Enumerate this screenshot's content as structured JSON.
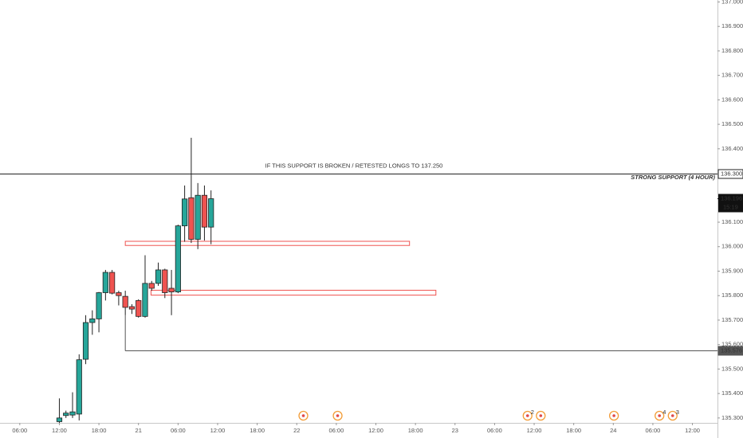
{
  "chart_data": {
    "type": "candlestick",
    "up_color": "#26a69a",
    "down_color": "#ef5350",
    "xlim": [
      3,
      111.8
    ],
    "ylim": [
      135.28,
      137.008
    ],
    "x": [
      12,
      13,
      14,
      15,
      16,
      17,
      18,
      19,
      20,
      21,
      22,
      23,
      24,
      25,
      26,
      27,
      28,
      29,
      30,
      31,
      32,
      33,
      34,
      35
    ],
    "open": [
      135.285,
      135.31,
      135.312,
      135.316,
      135.54,
      135.69,
      135.705,
      135.812,
      135.895,
      135.812,
      135.797,
      135.755,
      135.78,
      135.715,
      135.85,
      135.85,
      135.905,
      135.83,
      135.815,
      136.085,
      136.2,
      136.03,
      136.21,
      136.08
    ],
    "high": [
      135.38,
      135.33,
      135.405,
      135.56,
      135.72,
      135.74,
      135.815,
      135.905,
      135.905,
      135.82,
      135.82,
      135.765,
      135.785,
      135.965,
      135.86,
      135.935,
      135.91,
      135.905,
      136.09,
      136.25,
      136.445,
      136.26,
      136.25,
      136.23
    ],
    "low": [
      135.28,
      135.3,
      135.3,
      135.29,
      135.52,
      135.64,
      135.65,
      135.78,
      135.805,
      135.76,
      135.72,
      135.725,
      135.71,
      135.71,
      135.82,
      135.84,
      135.79,
      135.72,
      135.81,
      136.02,
      136.015,
      135.99,
      136.025,
      136.01
    ],
    "close": [
      135.3,
      135.32,
      135.325,
      135.538,
      135.69,
      135.705,
      135.812,
      135.895,
      135.81,
      135.8,
      135.752,
      135.745,
      135.715,
      135.85,
      135.83,
      135.905,
      135.812,
      135.815,
      136.085,
      136.195,
      136.03,
      136.21,
      136.08,
      136.196
    ],
    "xticks": [
      {
        "value": 6,
        "label": "06:00"
      },
      {
        "value": 12,
        "label": "12:00"
      },
      {
        "value": 18,
        "label": "18:00"
      },
      {
        "value": 24,
        "label": "21"
      },
      {
        "value": 30,
        "label": "06:00"
      },
      {
        "value": 36,
        "label": "12:00"
      },
      {
        "value": 42,
        "label": "18:00"
      },
      {
        "value": 48,
        "label": "22"
      },
      {
        "value": 54,
        "label": "06:00"
      },
      {
        "value": 60,
        "label": "12:00"
      },
      {
        "value": 66,
        "label": "18:00"
      },
      {
        "value": 72,
        "label": "23"
      },
      {
        "value": 78,
        "label": "06:00"
      },
      {
        "value": 84,
        "label": "12:00"
      },
      {
        "value": 90,
        "label": "18:00"
      },
      {
        "value": 96,
        "label": "24"
      },
      {
        "value": 102,
        "label": "06:00"
      },
      {
        "value": 108,
        "label": "12:00"
      }
    ],
    "yticks": [
      {
        "value": 137.0,
        "label": "137.000"
      },
      {
        "value": 136.9,
        "label": "136.900"
      },
      {
        "value": 136.8,
        "label": "136.800"
      },
      {
        "value": 136.7,
        "label": "136.700"
      },
      {
        "value": 136.6,
        "label": "136.600"
      },
      {
        "value": 136.5,
        "label": "136.500"
      },
      {
        "value": 136.4,
        "label": "136.400"
      },
      {
        "value": 136.1,
        "label": "136.100"
      },
      {
        "value": 136.0,
        "label": "136.000"
      },
      {
        "value": 135.9,
        "label": "135.900"
      },
      {
        "value": 135.8,
        "label": "135.800"
      },
      {
        "value": 135.7,
        "label": "135.700"
      },
      {
        "value": 135.6,
        "label": "135.600"
      },
      {
        "value": 135.5,
        "label": "135.500"
      },
      {
        "value": 135.4,
        "label": "135.400"
      },
      {
        "value": 135.3,
        "label": "135.300"
      }
    ],
    "levels": [
      {
        "value": 136.3,
        "label": "136.300",
        "note": "IF THIS SUPPORT IS BROKEN / RETESTED LONGS TO 137.250",
        "tag": "STRONG SUPPORT (4 HOUR)",
        "color": "#222222"
      },
      {
        "value": 135.576,
        "label": "135.576",
        "x_start": 22,
        "drop_from": 135.72,
        "color": "#555555"
      }
    ],
    "zones": [
      {
        "top": 136.022,
        "bottom": 136.005,
        "x_start": 22,
        "x_end": 65.1,
        "color": "#ef5350"
      },
      {
        "top": 135.822,
        "bottom": 135.802,
        "x_start": 25.9,
        "x_end": 69.1,
        "color": "#ef5350"
      }
    ],
    "last": {
      "value": 136.196,
      "label": "136.196",
      "countdown": "15:19"
    },
    "events": [
      {
        "x": 49
      },
      {
        "x": 54.2
      },
      {
        "x": 83,
        "count": 2
      },
      {
        "x": 85
      },
      {
        "x": 96.1
      },
      {
        "x": 103,
        "count": 4
      },
      {
        "x": 105,
        "count": 3
      }
    ]
  }
}
